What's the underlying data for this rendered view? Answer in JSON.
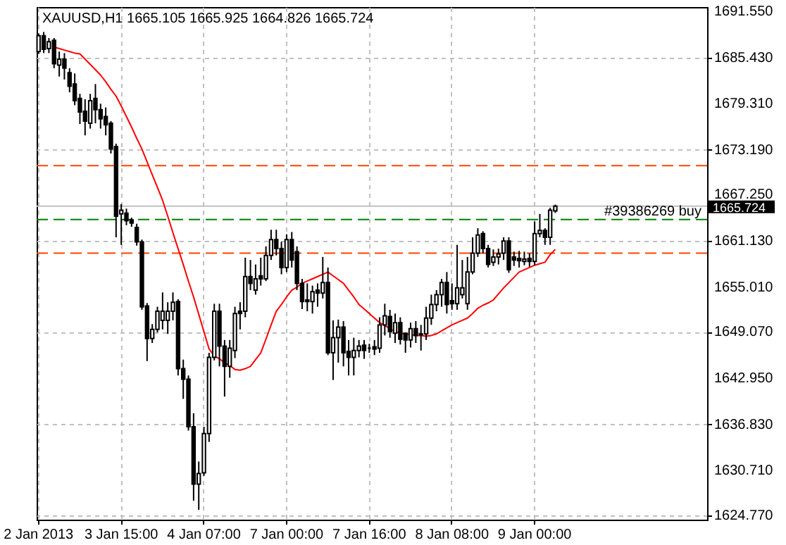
{
  "chart_data": {
    "type": "candlestick",
    "title": "XAUUSD,H1  1665.105 1665.925 1664.826 1665.724",
    "categories": [
      "2 Jan 2013",
      null,
      null,
      null,
      null,
      null,
      null,
      null,
      null,
      null,
      null,
      null,
      null,
      null,
      null,
      null,
      "3 Jan 15:00",
      null,
      null,
      null,
      null,
      null,
      null,
      null,
      null,
      null,
      null,
      null,
      null,
      null,
      null,
      null,
      "4 Jan 07:00",
      null,
      null,
      null,
      null,
      null,
      null,
      null,
      null,
      null,
      null,
      null,
      null,
      null,
      null,
      null,
      "7 Jan 00:00",
      null,
      null,
      null,
      null,
      null,
      null,
      null,
      null,
      null,
      null,
      null,
      null,
      null,
      null,
      null,
      "7 Jan 16:00",
      null,
      null,
      null,
      null,
      null,
      null,
      null,
      null,
      null,
      null,
      null,
      null,
      null,
      null,
      null,
      "8 Jan 08:00",
      null,
      null,
      null,
      null,
      null,
      null,
      null,
      null,
      null,
      null,
      null,
      null,
      null,
      null,
      null,
      "9 Jan 00:00",
      null,
      null,
      null,
      null,
      null,
      null,
      null,
      null,
      null,
      null,
      null,
      null,
      null,
      null,
      null,
      null,
      null,
      null,
      null,
      null,
      null,
      null,
      null,
      null,
      null,
      null,
      null,
      null,
      null,
      null,
      null,
      null,
      null
    ],
    "ohlc": [
      [
        1686.2,
        1688.6,
        1685.9,
        1688.3
      ],
      [
        1688.3,
        1688.8,
        1686.0,
        1686.5
      ],
      [
        1686.6,
        1688.0,
        1686.0,
        1687.5
      ],
      [
        1687.7,
        1688.0,
        1684.0,
        1684.6
      ],
      [
        1684.4,
        1686.2,
        1682.9,
        1685.2
      ],
      [
        1685.2,
        1686.0,
        1682.5,
        1684.0
      ],
      [
        1683.4,
        1684.0,
        1680.8,
        1681.6
      ],
      [
        1681.9,
        1683.3,
        1679.1,
        1679.7
      ],
      [
        1680.0,
        1680.6,
        1676.6,
        1678.2
      ],
      [
        1678.3,
        1679.9,
        1675.1,
        1677.0
      ],
      [
        1676.7,
        1680.6,
        1676.0,
        1679.7
      ],
      [
        1680.0,
        1681.9,
        1676.7,
        1678.5
      ],
      [
        1678.5,
        1679.3,
        1676.0,
        1677.3
      ],
      [
        1677.6,
        1678.8,
        1675.1,
        1676.5
      ],
      [
        1676.7,
        1677.0,
        1672.7,
        1673.3
      ],
      [
        1673.6,
        1674.0,
        1661.6,
        1664.4
      ],
      [
        1664.7,
        1666.0,
        1660.6,
        1665.2
      ],
      [
        1664.8,
        1665.4,
        1663.2,
        1663.8
      ],
      [
        1663.9,
        1664.2,
        1663.0,
        1663.5
      ],
      [
        1662.9,
        1663.4,
        1660.5,
        1661.0
      ],
      [
        1661.0,
        1661.3,
        1652.0,
        1652.4
      ],
      [
        1652.5,
        1652.9,
        1645.2,
        1648.2
      ],
      [
        1648.2,
        1650.1,
        1647.6,
        1649.4
      ],
      [
        1649.4,
        1652.4,
        1649.0,
        1651.8
      ],
      [
        1650.6,
        1654.3,
        1649.4,
        1651.8
      ],
      [
        1650.6,
        1653.0,
        1648.8,
        1651.8
      ],
      [
        1651.8,
        1654.3,
        1650.6,
        1653.0
      ],
      [
        1653.1,
        1653.4,
        1643.3,
        1644.2
      ],
      [
        1644.2,
        1645.4,
        1640.2,
        1642.8
      ],
      [
        1642.8,
        1643.3,
        1636.0,
        1636.5
      ],
      [
        1636.5,
        1638.3,
        1626.7,
        1628.9
      ],
      [
        1628.9,
        1631.9,
        1625.5,
        1630.3
      ],
      [
        1630.4,
        1636.5,
        1630.0,
        1635.6
      ],
      [
        1635.6,
        1646.3,
        1634.5,
        1645.7
      ],
      [
        1645.7,
        1652.8,
        1645.3,
        1651.8
      ],
      [
        1651.8,
        1652.8,
        1644.5,
        1647.2
      ],
      [
        1647.2,
        1648.0,
        1640.5,
        1644.5
      ],
      [
        1644.5,
        1648.0,
        1643.0,
        1646.9
      ],
      [
        1646.6,
        1652.4,
        1645.6,
        1651.5
      ],
      [
        1651.8,
        1653.0,
        1649.4,
        1651.5
      ],
      [
        1651.8,
        1658.9,
        1651.0,
        1656.4
      ],
      [
        1656.4,
        1658.6,
        1654.6,
        1655.5
      ],
      [
        1654.6,
        1658.0,
        1654.0,
        1656.1
      ],
      [
        1656.5,
        1658.9,
        1655.2,
        1656.1
      ],
      [
        1656.1,
        1660.4,
        1655.8,
        1659.2
      ],
      [
        1659.2,
        1662.6,
        1658.6,
        1661.3
      ],
      [
        1661.3,
        1662.6,
        1659.2,
        1660.1
      ],
      [
        1660.1,
        1661.0,
        1656.7,
        1657.6
      ],
      [
        1657.6,
        1662.0,
        1657.0,
        1661.3
      ],
      [
        1661.3,
        1662.3,
        1657.6,
        1658.6
      ],
      [
        1659.7,
        1660.4,
        1654.6,
        1655.5
      ],
      [
        1655.5,
        1656.1,
        1652.1,
        1653.1
      ],
      [
        1653.3,
        1655.5,
        1651.8,
        1653.1
      ],
      [
        1653.1,
        1655.2,
        1651.5,
        1654.4
      ],
      [
        1654.6,
        1655.5,
        1652.4,
        1654.2
      ],
      [
        1654.2,
        1659.0,
        1653.5,
        1655.6
      ],
      [
        1655.6,
        1657.6,
        1646.0,
        1646.3
      ],
      [
        1646.3,
        1650.6,
        1642.7,
        1648.3
      ],
      [
        1648.3,
        1650.7,
        1645.0,
        1649.7
      ],
      [
        1649.7,
        1650.5,
        1644.5,
        1646.3
      ],
      [
        1646.5,
        1648.0,
        1643.3,
        1645.7
      ],
      [
        1645.7,
        1648.3,
        1643.3,
        1646.6
      ],
      [
        1646.6,
        1648.0,
        1645.7,
        1647.2
      ],
      [
        1647.3,
        1648.0,
        1645.5,
        1646.6
      ],
      [
        1646.9,
        1647.5,
        1646.3,
        1646.9
      ],
      [
        1647.1,
        1648.0,
        1646.0,
        1646.8
      ],
      [
        1646.9,
        1651.0,
        1646.3,
        1650.0
      ],
      [
        1650.0,
        1652.8,
        1648.6,
        1651.2
      ],
      [
        1651.1,
        1652.0,
        1648.3,
        1649.1
      ],
      [
        1648.9,
        1651.5,
        1647.6,
        1650.3
      ],
      [
        1650.3,
        1651.0,
        1647.4,
        1648.1
      ],
      [
        1648.9,
        1649.0,
        1646.3,
        1648.0
      ],
      [
        1648.0,
        1650.3,
        1647.0,
        1649.5
      ],
      [
        1649.5,
        1650.5,
        1647.6,
        1648.6
      ],
      [
        1648.7,
        1650.0,
        1646.6,
        1648.8
      ],
      [
        1648.8,
        1652.4,
        1648.0,
        1650.9
      ],
      [
        1650.9,
        1654.0,
        1650.0,
        1652.7
      ],
      [
        1652.7,
        1654.6,
        1651.8,
        1654.0
      ],
      [
        1654.0,
        1656.1,
        1652.4,
        1655.6
      ],
      [
        1655.6,
        1657.0,
        1651.5,
        1652.7
      ],
      [
        1653.2,
        1655.5,
        1652.0,
        1652.8
      ],
      [
        1652.8,
        1660.6,
        1652.0,
        1654.9
      ],
      [
        1654.0,
        1658.6,
        1653.5,
        1654.9
      ],
      [
        1652.8,
        1659.0,
        1652.0,
        1657.0
      ],
      [
        1657.0,
        1661.6,
        1656.7,
        1659.5
      ],
      [
        1659.5,
        1662.8,
        1659.0,
        1661.9
      ],
      [
        1662.1,
        1662.4,
        1659.5,
        1660.1
      ],
      [
        1660.1,
        1660.6,
        1657.6,
        1658.0
      ],
      [
        1658.3,
        1660.0,
        1657.8,
        1659.0
      ],
      [
        1659.0,
        1660.1,
        1658.0,
        1659.4
      ],
      [
        1659.5,
        1661.6,
        1658.6,
        1661.1
      ],
      [
        1661.1,
        1661.6,
        1656.9,
        1657.3
      ],
      [
        1659.0,
        1659.7,
        1657.8,
        1658.6
      ],
      [
        1658.8,
        1659.8,
        1657.6,
        1658.5
      ],
      [
        1658.4,
        1659.7,
        1657.9,
        1658.7
      ],
      [
        1658.8,
        1659.5,
        1657.7,
        1658.4
      ],
      [
        1658.4,
        1663.7,
        1657.9,
        1662.1
      ],
      [
        1662.1,
        1664.7,
        1661.6,
        1662.5
      ],
      [
        1662.5,
        1662.8,
        1660.6,
        1661.6
      ],
      [
        1661.6,
        1665.5,
        1660.6,
        1665.2
      ],
      [
        1665.105,
        1665.925,
        1664.826,
        1665.724
      ],
      null,
      null,
      null,
      null,
      null,
      null,
      null,
      null,
      null,
      null,
      null,
      null,
      null,
      null,
      null,
      null,
      null,
      null,
      null,
      null,
      null,
      null,
      null,
      null,
      null,
      null,
      null,
      null,
      null
    ],
    "series": [
      {
        "type": "line",
        "color": "#ff0000",
        "values": [
          null,
          null,
          null,
          1686.8,
          1686.6,
          1686.4,
          1686.2,
          1686.0,
          1685.9,
          1685.2,
          1684.5,
          1683.8,
          1683.1,
          1682.2,
          1681.2,
          1680.3,
          1679.0,
          1677.6,
          1676.2,
          1674.7,
          1673.3,
          1671.6,
          1669.9,
          1668.2,
          1666.5,
          1664.4,
          1662.2,
          1660.1,
          1658.0,
          1655.8,
          1653.7,
          1651.4,
          1649.1,
          1646.8,
          1645.9,
          1645.5,
          1645.0,
          1644.6,
          1644.1,
          1644.0,
          1644.2,
          1644.5,
          1645.4,
          1646.3,
          1648.1,
          1650.0,
          1651.8,
          1652.7,
          1653.7,
          1654.6,
          1655.0,
          1655.5,
          1655.8,
          1656.1,
          1656.4,
          1656.7,
          1657.0,
          1656.5,
          1656.0,
          1655.5,
          1654.6,
          1653.7,
          1652.7,
          1652.1,
          1651.5,
          1650.9,
          1650.3,
          1649.9,
          1649.5,
          1649.1,
          1648.9,
          1648.8,
          1648.7,
          1648.6,
          1648.6,
          1648.5,
          1648.6,
          1648.8,
          1649.2,
          1649.6,
          1650.0,
          1650.3,
          1650.6,
          1650.9,
          1651.5,
          1652.2,
          1652.6,
          1652.9,
          1653.3,
          1654.1,
          1654.9,
          1655.6,
          1656.3,
          1657.0,
          1657.3,
          1657.6,
          1657.9,
          1658.1,
          1658.3,
          1659.3,
          1660.0,
          null,
          null,
          null,
          null,
          null,
          null,
          null,
          null,
          null,
          null,
          null,
          null,
          null,
          null,
          null,
          null,
          null,
          null,
          null,
          null,
          null,
          null,
          null,
          null,
          null,
          null,
          null,
          null,
          null
        ]
      }
    ],
    "ylim": [
      1624.2,
      1692.1
    ],
    "yticks": [
      {
        "value": 1624.77,
        "label": "1624.770"
      },
      {
        "value": 1630.71,
        "label": "1630.710"
      },
      {
        "value": 1636.83,
        "label": "1636.830"
      },
      {
        "value": 1642.95,
        "label": "1642.950"
      },
      {
        "value": 1649.07,
        "label": "1649.070"
      },
      {
        "value": 1655.01,
        "label": "1655.010"
      },
      {
        "value": 1661.13,
        "label": "1661.130"
      },
      {
        "value": 1667.25,
        "label": "1667.250"
      },
      {
        "value": 1673.19,
        "label": "1673.190"
      },
      {
        "value": 1679.31,
        "label": "1679.310"
      },
      {
        "value": 1685.43,
        "label": "1685.430"
      },
      {
        "value": 1691.55,
        "label": "1691.550"
      }
    ],
    "ref_lines": [
      {
        "axis": "y",
        "value": 1671.1,
        "color": "#ff4500",
        "line_style": "dashed"
      },
      {
        "axis": "y",
        "value": 1665.724,
        "label": "1665.724",
        "color": "#c0c0c0",
        "line_style": "solid"
      },
      {
        "axis": "y",
        "value": 1663.95,
        "label": "#39386269 buy",
        "color": "#008000",
        "line_style": "dashed"
      },
      {
        "axis": "y",
        "value": 1659.5,
        "color": "#ff4500",
        "line_style": "dashed"
      }
    ],
    "grid": true
  }
}
